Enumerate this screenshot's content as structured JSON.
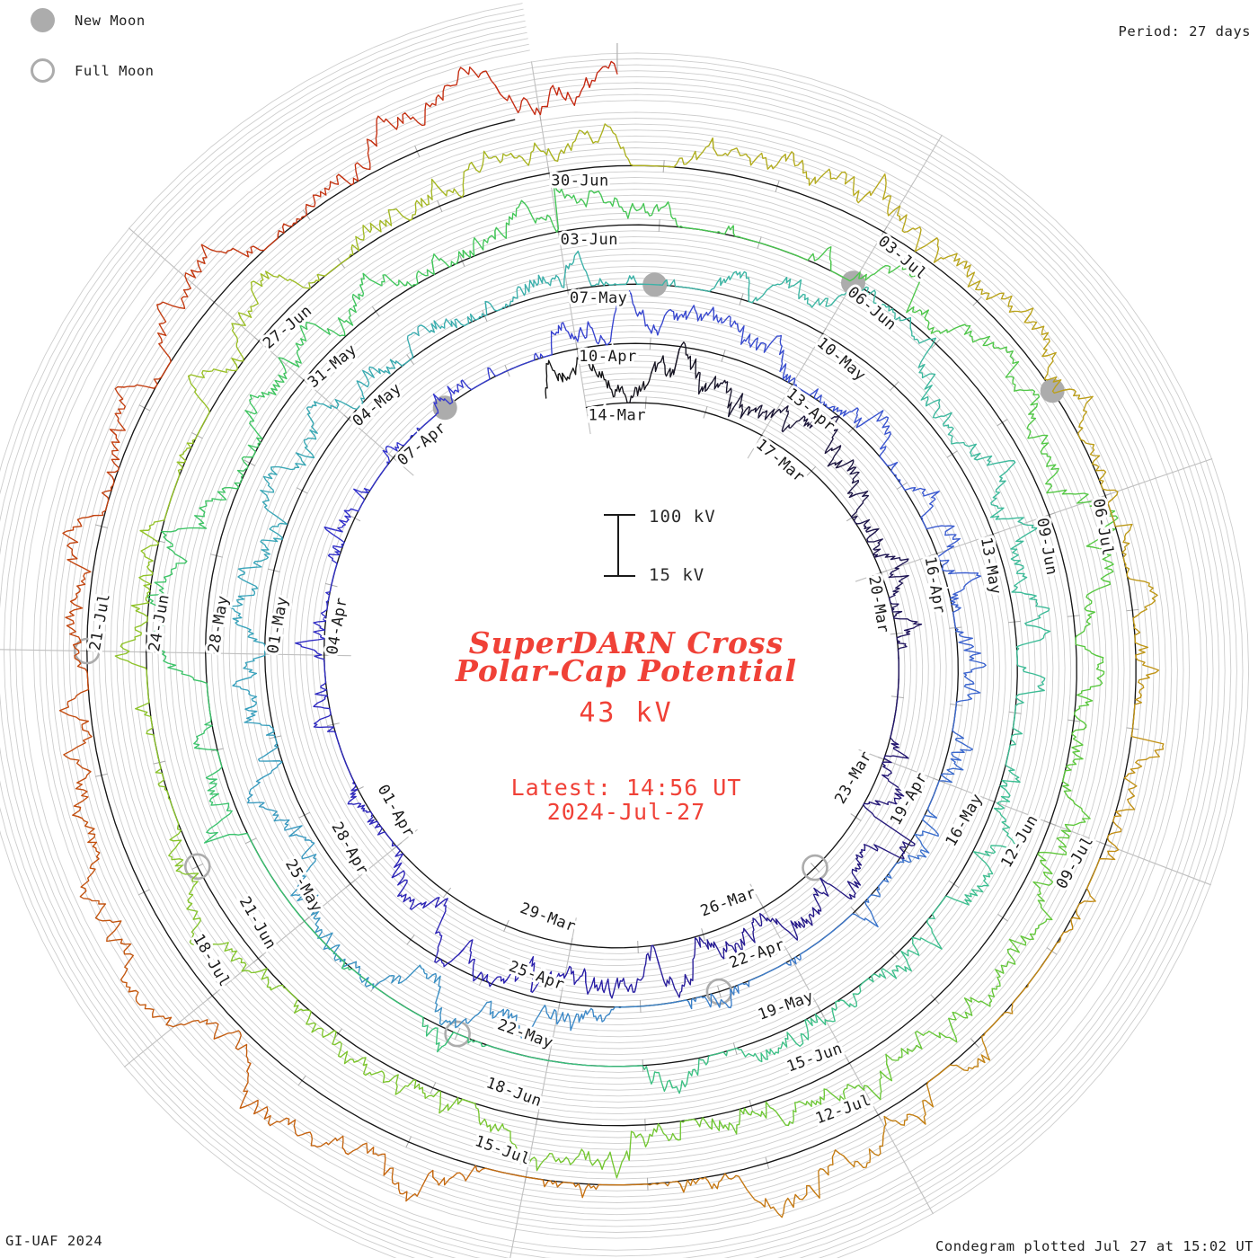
{
  "header": {
    "period_label": "Period: 27 days"
  },
  "legend": {
    "new_moon_label": "New Moon",
    "full_moon_label": "Full Moon"
  },
  "footer": {
    "credit": "GI-UAF 2024",
    "plotted": "Condegram plotted Jul 27 at 15:02 UT"
  },
  "center_panel": {
    "title_line1": "SuperDARN Cross",
    "title_line2": "Polar-Cap Potential",
    "current_value": "43 kV",
    "latest_time": "Latest: 14:56 UT",
    "latest_date": "2024-Jul-27"
  },
  "scale_bar": {
    "top_label": "100 kV",
    "bottom_label": "15 kV"
  },
  "chart_data": {
    "type": "line",
    "subtype": "polar-spiral-condegram",
    "title": "SuperDARN Cross Polar-Cap Potential",
    "current_value_kv": 43,
    "latest_sample": "2024-Jul-27 14:56 UT",
    "period_days": 27,
    "revolutions": 5,
    "time_direction": "clockwise, starting at top",
    "value_scale_kv": {
      "baseline": 15,
      "reference": 100
    },
    "grid": {
      "rays": 9,
      "ray_step_days": 3,
      "sublines_per_band": 9,
      "grid_on": true
    },
    "date_labels": [
      "14-Mar",
      "17-Mar",
      "20-Mar",
      "23-Mar",
      "26-Mar",
      "29-Mar",
      "01-Apr",
      "04-Apr",
      "07-Apr",
      "10-Apr",
      "13-Apr",
      "16-Apr",
      "19-Apr",
      "22-Apr",
      "25-Apr",
      "28-Apr",
      "01-May",
      "04-May",
      "07-May",
      "10-May",
      "13-May",
      "16-May",
      "19-May",
      "22-May",
      "25-May",
      "28-May",
      "31-May",
      "03-Jun",
      "06-Jun",
      "09-Jun",
      "12-Jun",
      "15-Jun",
      "18-Jun",
      "21-Jun",
      "24-Jun",
      "27-Jun",
      "30-Jun",
      "03-Jul",
      "06-Jul",
      "09-Jul",
      "12-Jul",
      "15-Jul",
      "18-Jul",
      "21-Jul"
    ],
    "new_moons": [
      {
        "date": "2024-04-08",
        "day": 25
      },
      {
        "date": "2024-05-08",
        "day": 55
      },
      {
        "date": "2024-06-06",
        "day": 84
      },
      {
        "date": "2024-07-05",
        "day": 113
      }
    ],
    "full_moons": [
      {
        "date": "2024-03-25",
        "day": 11
      },
      {
        "date": "2024-04-23",
        "day": 40
      },
      {
        "date": "2024-05-23",
        "day": 70
      },
      {
        "date": "2024-06-22",
        "day": 100
      },
      {
        "date": "2024-07-21",
        "day": 129
      }
    ],
    "trace_color_stops": [
      {
        "day": 0,
        "color": "#141414"
      },
      {
        "day": 8,
        "color": "#221568"
      },
      {
        "day": 16,
        "color": "#2A20B2"
      },
      {
        "day": 24,
        "color": "#3333CE"
      },
      {
        "day": 32,
        "color": "#3A57D0"
      },
      {
        "day": 40,
        "color": "#3C80CA"
      },
      {
        "day": 48,
        "color": "#38A2BC"
      },
      {
        "day": 56,
        "color": "#3BB5A4"
      },
      {
        "day": 64,
        "color": "#3DBF90"
      },
      {
        "day": 72,
        "color": "#39C272"
      },
      {
        "day": 80,
        "color": "#41C65A"
      },
      {
        "day": 88,
        "color": "#57C840"
      },
      {
        "day": 96,
        "color": "#76C630"
      },
      {
        "day": 104,
        "color": "#96C226"
      },
      {
        "day": 111,
        "color": "#B8A81C"
      },
      {
        "day": 117,
        "color": "#C28E14"
      },
      {
        "day": 123,
        "color": "#C66E10"
      },
      {
        "day": 129,
        "color": "#C2470E"
      },
      {
        "day": 136,
        "color": "#C52511"
      }
    ],
    "marker_color": "#ACACAC",
    "grid_color": "#CDCDCD",
    "ray_color": "#C0C0C0",
    "baseline_color": "#161616",
    "accent_color": "#F04137"
  }
}
